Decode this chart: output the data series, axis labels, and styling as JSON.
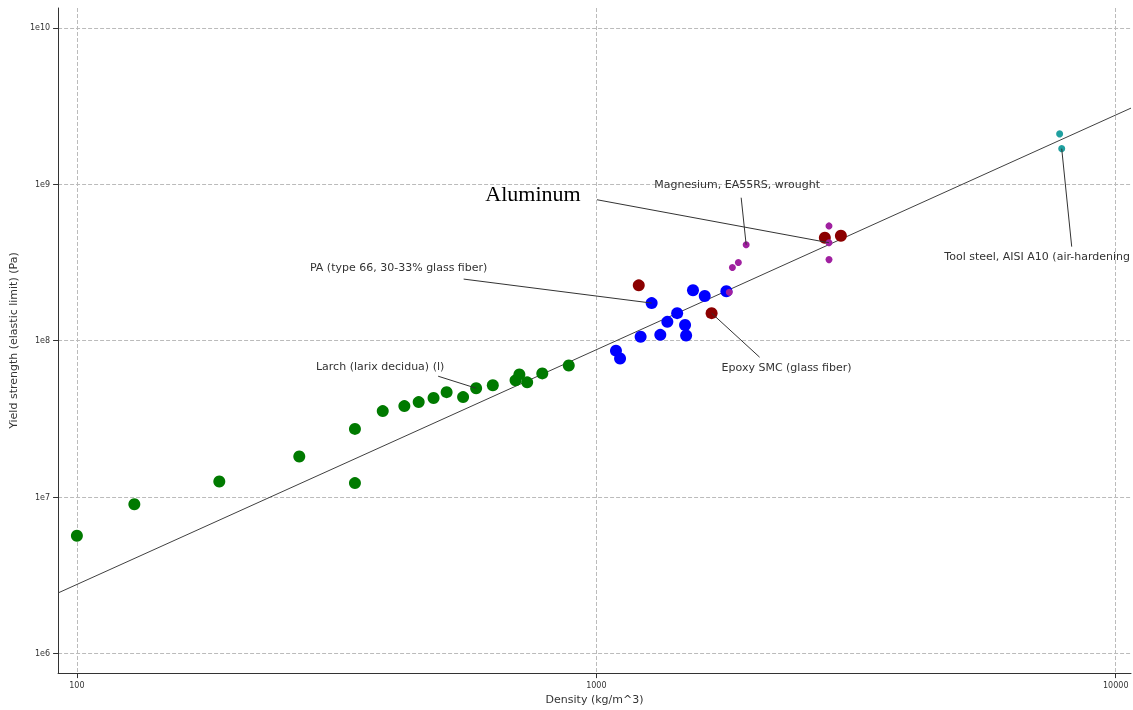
{
  "chart_data": {
    "type": "scatter",
    "xlabel": "Density (kg/m^3)",
    "ylabel": "Yield strength (elastic limit) (Pa)",
    "log": "xy",
    "grid": true,
    "marker": "circle",
    "xlim": [
      92,
      10700
    ],
    "ylim": [
      750000,
      13400000000
    ],
    "xticks": [
      100,
      1000,
      10000
    ],
    "yticks": [
      {
        "value": 1000000,
        "label": "1e6"
      },
      {
        "value": 10000000,
        "label": "1e7"
      },
      {
        "value": 100000000,
        "label": "1e8"
      },
      {
        "value": 1000000000,
        "label": "1e9"
      },
      {
        "value": 10000000000,
        "label": "1e10"
      }
    ],
    "series": [
      {
        "type": "line",
        "color": "#404040",
        "marker": "none",
        "x": [
          92,
          10700
        ],
        "values": [
          2440000,
          3070000000
        ]
      },
      {
        "color": "#007a00",
        "x": [
          100,
          129,
          188,
          268,
          343,
          343,
          388,
          427,
          455,
          486,
          515,
          554,
          587,
          632,
          699,
          711,
          736,
          787,
          885
        ],
        "values": [
          5660000,
          9000000,
          12600000,
          18200000,
          27300000,
          12300000,
          35500000,
          38200000,
          40500000,
          43000000,
          46900000,
          43600000,
          49700000,
          51900000,
          55800000,
          60900000,
          54200000,
          61800000,
          69500000
        ]
      },
      {
        "color": "#0000ff",
        "x": [
          1091,
          1111,
          1217,
          1278,
          1328,
          1370,
          1482,
          1489,
          1431,
          1535,
          1617,
          1780
        ],
        "values": [
          86400000,
          76900000,
          106000000,
          174000000,
          109000000,
          132000000,
          126000000,
          108000000,
          150000000,
          210000000,
          193000000,
          207000000
        ]
      },
      {
        "color": "#8b0000",
        "x": [
          1667,
          1207,
          2754,
          2957
        ],
        "values": [
          150000000,
          226000000,
          455000000,
          469000000
        ]
      },
      {
        "color": "#a020a0",
        "x": [
          1943,
          1828,
          1877,
          1803,
          2805,
          2805,
          2805
        ],
        "values": [
          411000000,
          294000000,
          316000000,
          204000000,
          542000000,
          423000000,
          330000000
        ]
      },
      {
        "color": "#20a0a0",
        "x": [
          7798,
          7870
        ],
        "values": [
          2100000000,
          1690000000
        ]
      }
    ],
    "annotations": [
      {
        "text": "Aluminum",
        "x": 2805,
        "y": 423000000
      },
      {
        "text": "Magnesium, EA55RS, wrought",
        "x": 1943,
        "y": 411000000
      },
      {
        "text": "PA (type 66, 30-33% glass fiber)",
        "x": 1278,
        "y": 174000000
      },
      {
        "text": "Larch (larix decidua) (l)",
        "x": 587,
        "y": 49700000
      },
      {
        "text": "Epoxy SMC (glass fiber)",
        "x": 1667,
        "y": 150000000
      },
      {
        "text": "Tool steel, AISI A10 (air-hardening",
        "x": 7870,
        "y": 1690000000
      }
    ]
  }
}
